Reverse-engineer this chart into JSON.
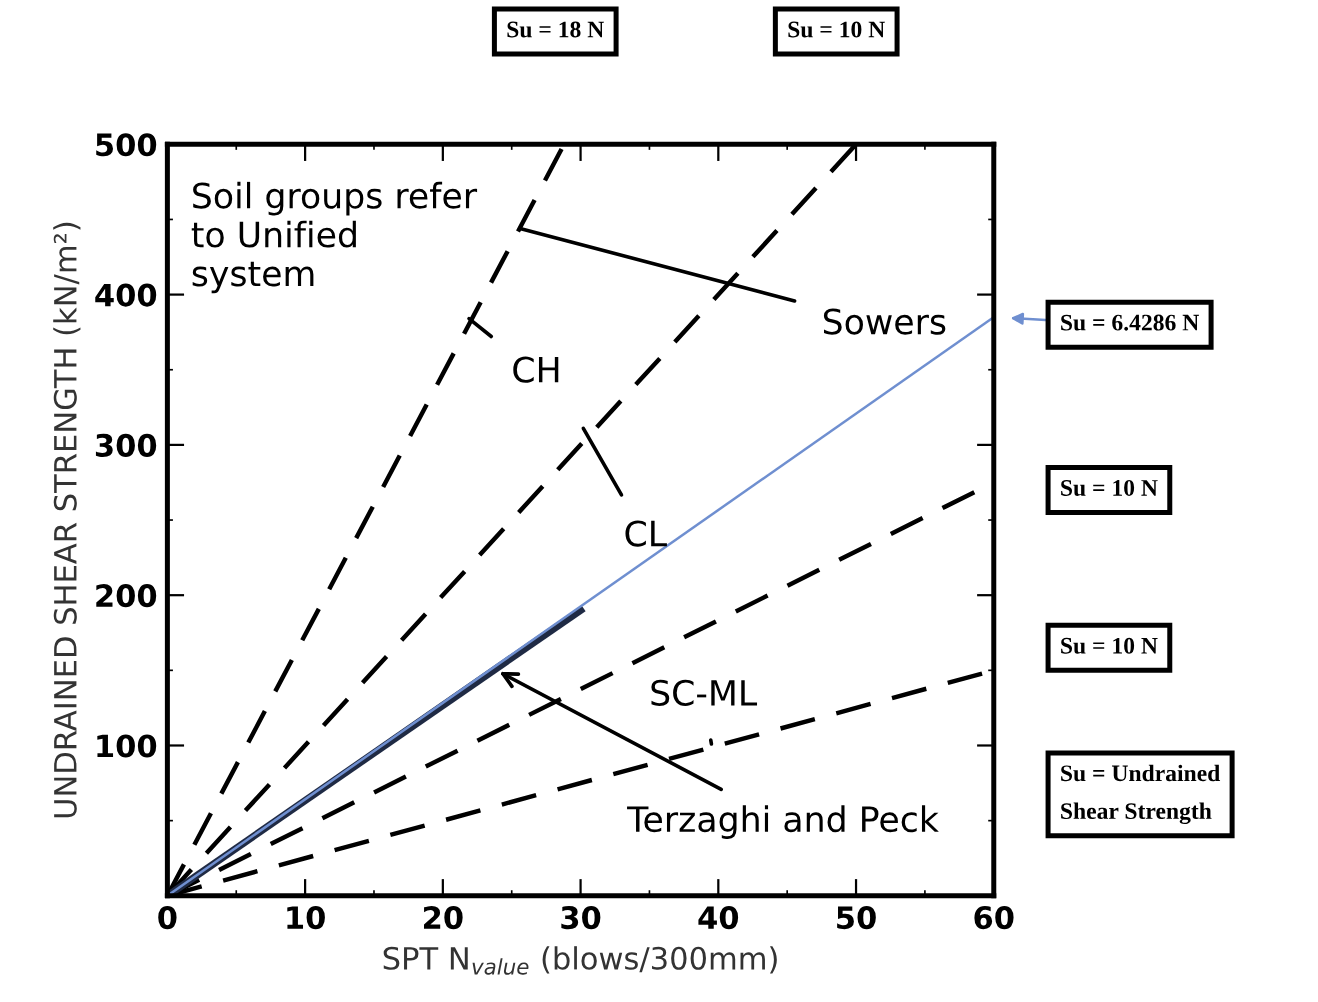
{
  "chart_data": {
    "type": "line",
    "xlabel": "SPT N$_{value}$ (blows/300mm)",
    "ylabel": "UNDRAINED SHEAR STRENGTH (kN/m²)",
    "xlim": [
      0,
      60
    ],
    "ylim": [
      0,
      500
    ],
    "xticks": [
      0,
      10,
      20,
      30,
      40,
      50,
      60
    ],
    "yticks": [
      {
        "value": 0,
        "label": null
      },
      100,
      200,
      300,
      400,
      500
    ],
    "grid": false,
    "legend": false,
    "marker": "none",
    "series": [
      {
        "color": "#000000",
        "line_style": "dashed",
        "x": [
          0,
          28.8
        ],
        "values": [
          0,
          500
        ]
      },
      {
        "color": "#000000",
        "line_style": "dashed",
        "x": [
          0,
          50
        ],
        "values": [
          0,
          500
        ]
      },
      {
        "color": "#000000",
        "line_style": "dashed",
        "x": [
          0,
          60
        ],
        "values": [
          0,
          275
        ]
      },
      {
        "color": "#000000",
        "line_style": "dashed",
        "x": [
          0,
          60
        ],
        "values": [
          0,
          150
        ]
      },
      {
        "color": "#1f2a44",
        "line_style": "solid",
        "x": [
          0,
          30
        ],
        "values": [
          0,
          190
        ]
      },
      {
        "color": "#6f8fd0",
        "line_style": "solid",
        "x": [
          0,
          60
        ],
        "values": [
          0,
          385
        ]
      }
    ],
    "annotations": [
      "Soil groups refer\nto Unified\nsystem",
      {
        "text": "Sowers",
        "x": 25.6,
        "y": 444
      },
      {
        "text": "CH",
        "x": 21.9,
        "y": 384
      },
      {
        "text": "CL",
        "x": 30.2,
        "y": 311
      },
      {
        "text": "SC-ML",
        "x": 39.5,
        "y": 101
      },
      {
        "text": "Terzaghi and Peck",
        "x": 24.1,
        "y": 149
      },
      "Su = 18 N",
      "Su = 10 N",
      {
        "text": "Su = 6.4286 N",
        "x": 60,
        "y": 385
      },
      "Su = 10 N",
      "Su = 10 N",
      "Su = Undrained\nShear Strength"
    ]
  }
}
